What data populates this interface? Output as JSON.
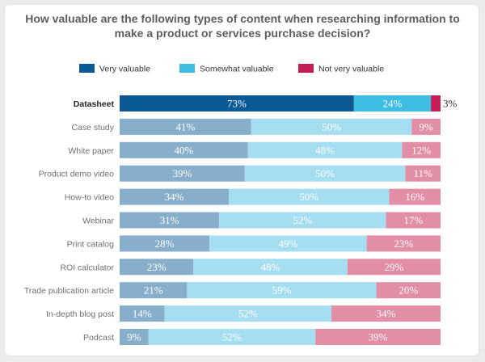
{
  "chart_data": {
    "type": "bar",
    "orientation": "horizontal",
    "stacked": true,
    "title_lines": [
      "How valuable are the following types of content when researching information to",
      "make a product or services purchase decision?"
    ],
    "categories": [
      "Datasheet",
      "Case study",
      "White paper",
      "Product demo video",
      "How-to video",
      "Webinar",
      "Print catalog",
      "ROI calculator",
      "Trade publication article",
      "In-depth blog post",
      "Podcast"
    ],
    "highlight_category": "Datasheet",
    "series": [
      {
        "name": "Very valuable",
        "values": [
          73,
          41,
          40,
          39,
          34,
          31,
          28,
          23,
          21,
          14,
          9
        ]
      },
      {
        "name": "Somewhat valuable",
        "values": [
          24,
          50,
          48,
          50,
          50,
          52,
          49,
          48,
          59,
          52,
          52
        ]
      },
      {
        "name": "Not very valuable",
        "values": [
          3,
          9,
          12,
          11,
          16,
          17,
          23,
          29,
          20,
          34,
          39
        ]
      }
    ],
    "value_suffix": "%",
    "colors": {
      "highlight": [
        "#0b5a96",
        "#3dbde3",
        "#c61f58"
      ],
      "normal": [
        "#87afcc",
        "#a5def0",
        "#e28ea7"
      ]
    },
    "legend_position": "top",
    "xlim": [
      0,
      100
    ],
    "grid": false
  }
}
